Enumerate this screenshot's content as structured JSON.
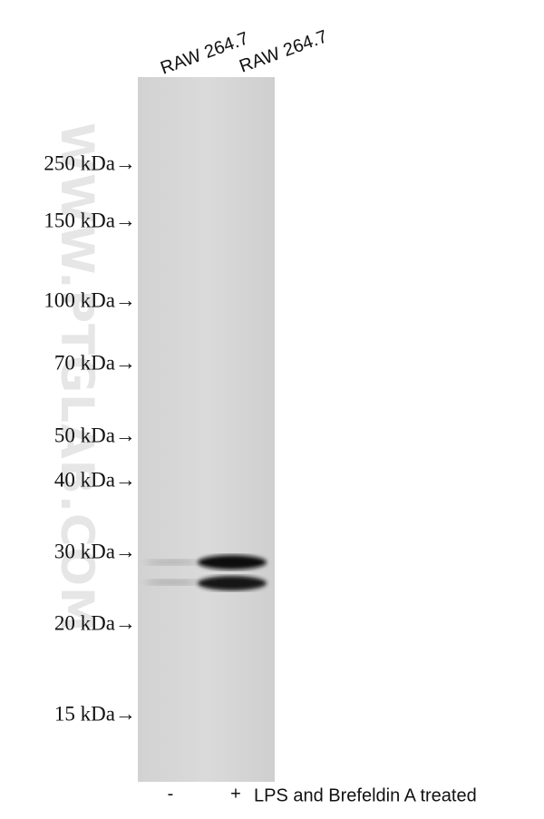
{
  "lanes": [
    "RAW 264.7",
    "RAW 264.7"
  ],
  "markers": [
    "250 kDa→",
    "150 kDa→",
    "100 kDa→",
    "70 kDa→",
    "50 kDa→",
    "40 kDa→",
    "30 kDa→",
    "20 kDa→",
    "15 kDa→"
  ],
  "watermark": "WWW.PTGLAB.COM",
  "treatment": {
    "minus": "-",
    "plus": "+",
    "label": "LPS and Brefeldin A treated"
  }
}
